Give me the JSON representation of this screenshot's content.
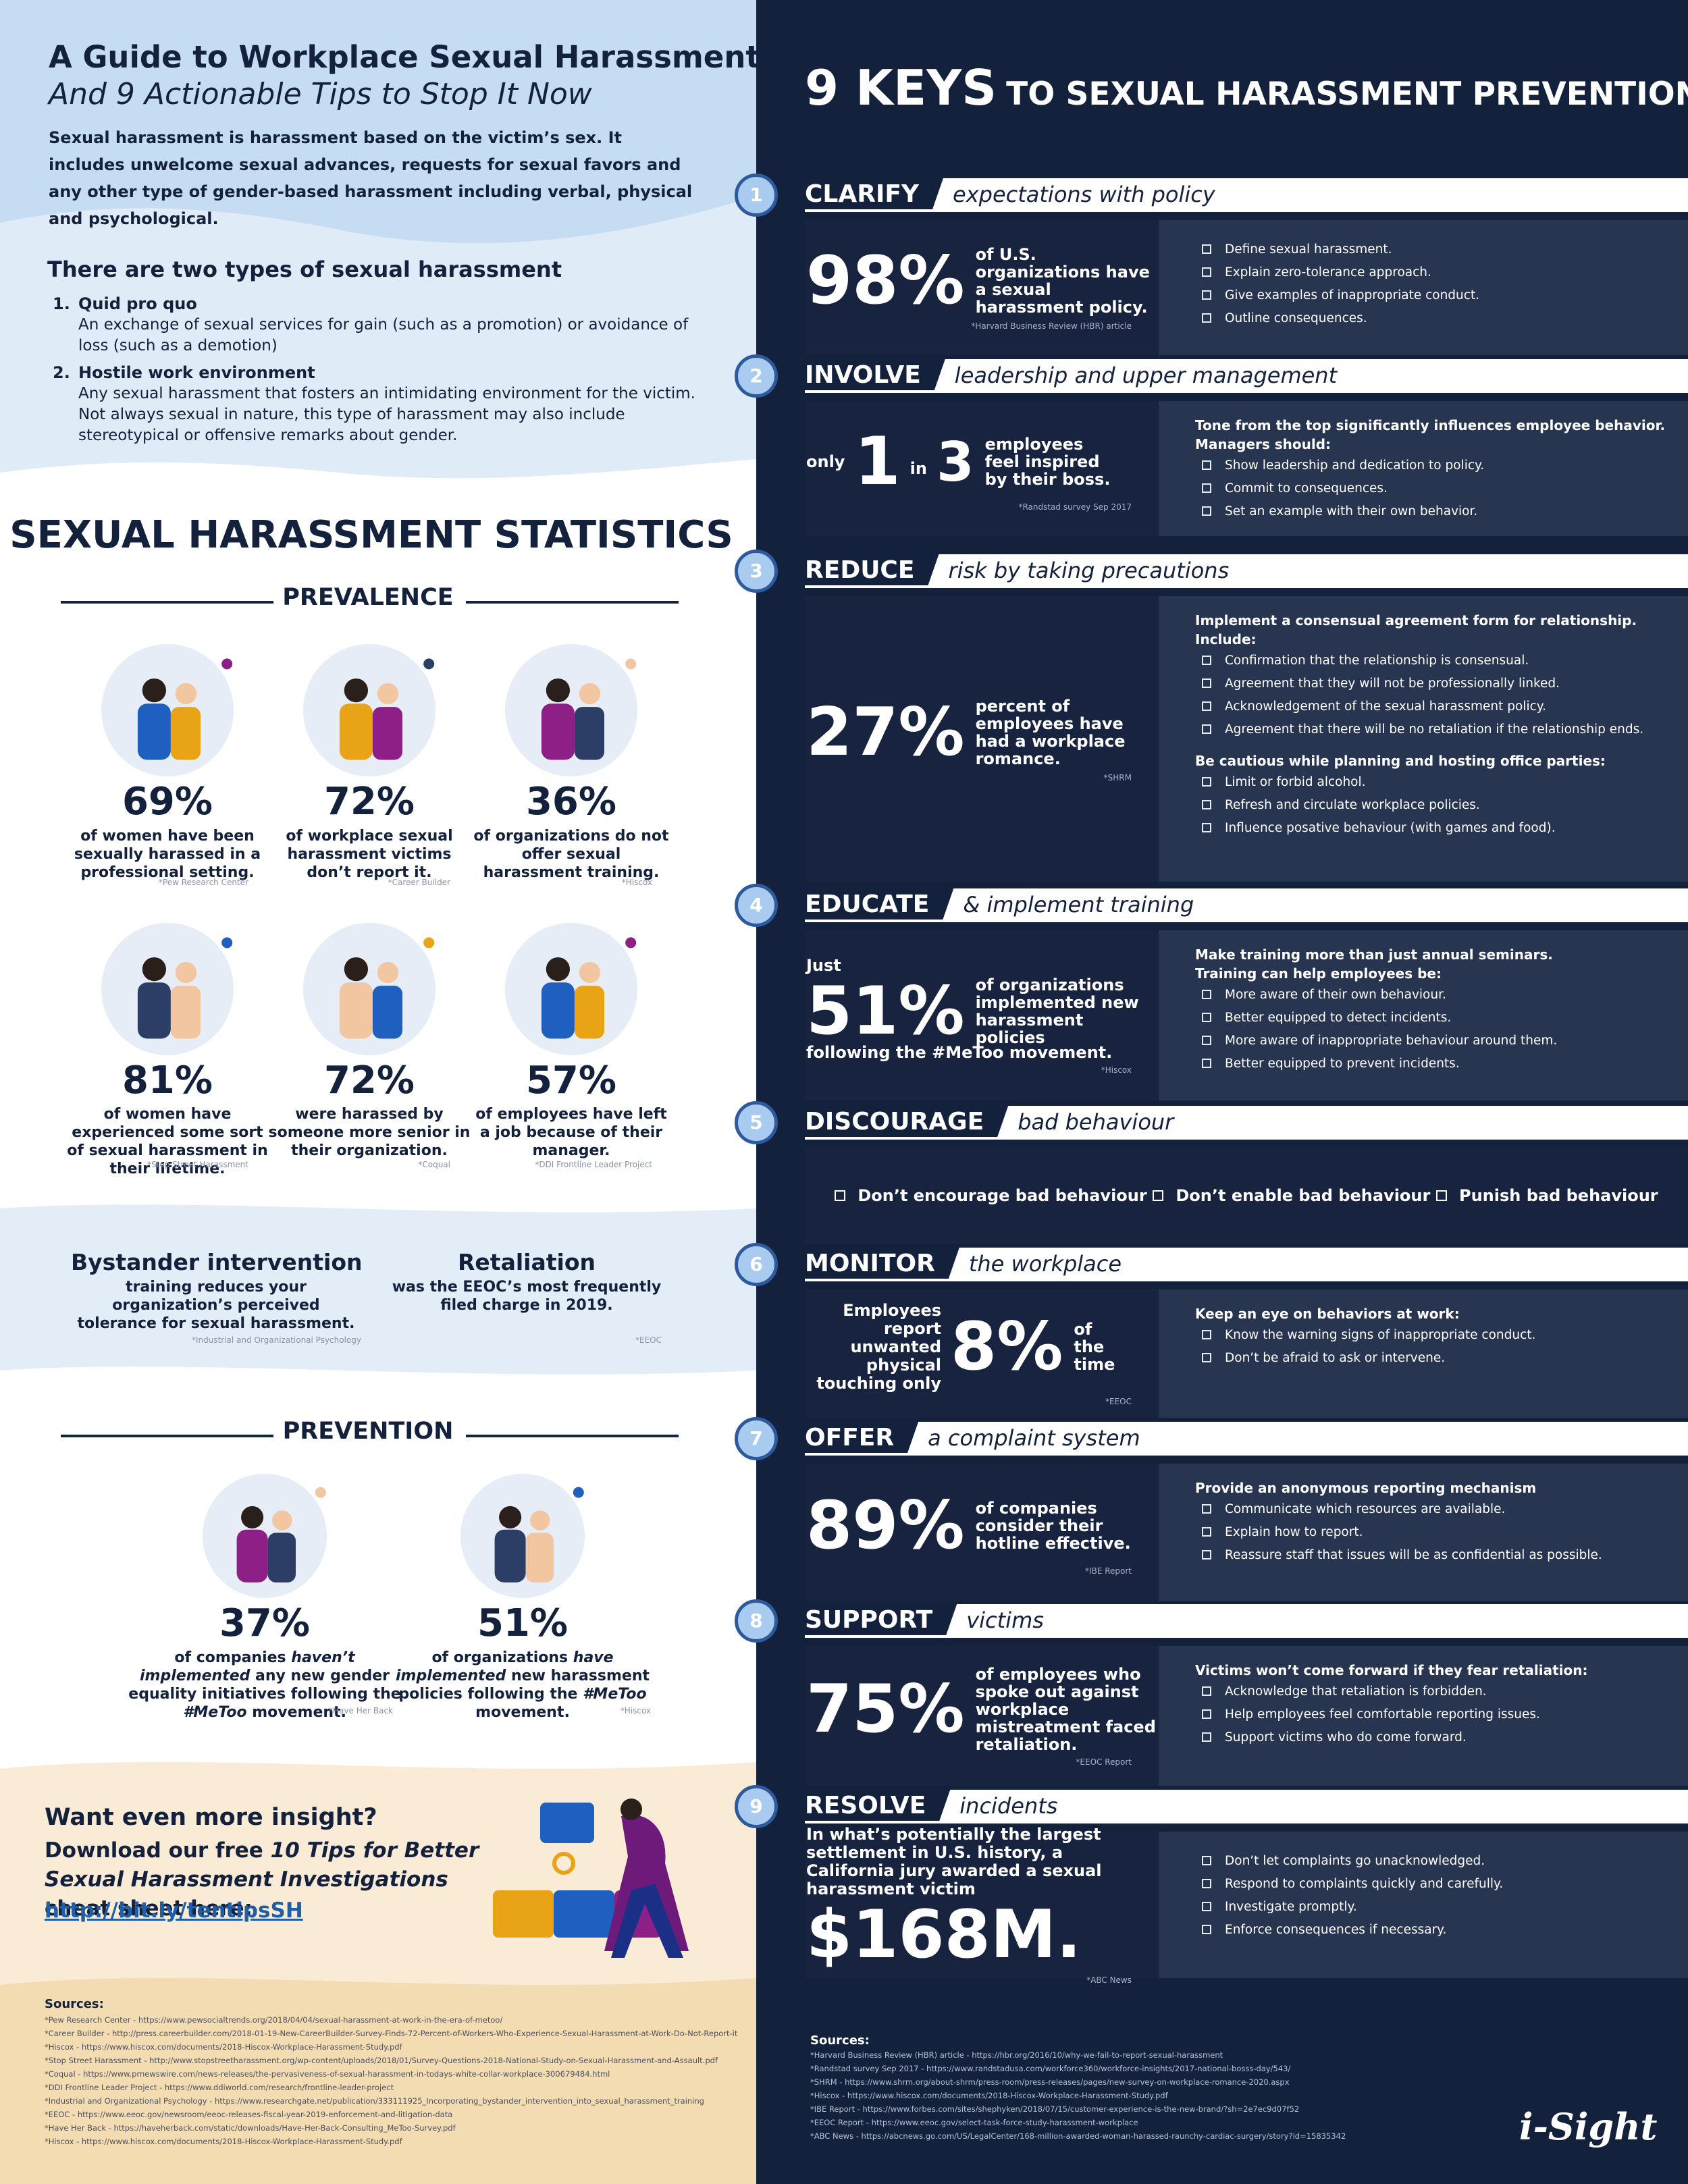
{
  "header": {
    "title": "A Guide to Workplace Sexual Harassment",
    "subtitle": "And 9 Actionable Tips to Stop It Now",
    "intro": "Sexual harassment is harassment based on the victim’s sex. It includes unwelcome sexual advances, requests for sexual favors and any other type of gender-based harassment including verbal, physical and psychological."
  },
  "types": {
    "heading": "There are two types of sexual harassment",
    "items": [
      {
        "number": "1.",
        "title": "Quid pro quo",
        "text": "An exchange of sexual services for gain (such as a promotion) or avoidance of loss (such as a demotion)"
      },
      {
        "number": "2.",
        "title": "Hostile work environment",
        "text": "Any sexual harassment that fosters an intimidating environment for the victim. Not always sexual in nature,  this type of harassment may  also include stereotypical or offensive remarks about gender."
      }
    ]
  },
  "statistics": {
    "title": "SEXUAL HARASSMENT STATISTICS",
    "prevalence": {
      "heading": "PREVALENCE",
      "stats": [
        {
          "value": "69%",
          "text": "of women have been sexually harassed in a professional setting.",
          "source": "*Pew Research Center"
        },
        {
          "value": "72%",
          "text": "of workplace sexual harassment victims don’t report it.",
          "source": "*Career Builder"
        },
        {
          "value": "36%",
          "text": "of organizations do not offer sexual harassment training.",
          "source": "*Hiscox"
        },
        {
          "value": "81%",
          "text": "of women have experienced some sort of sexual harassment in their lifetime.",
          "source": "*Stop Street Harassment"
        },
        {
          "value": "72%",
          "text": "were harassed by someone more senior in their organization.",
          "source": "*Coqual"
        },
        {
          "value": "57%",
          "text": "of employees have left a job because of their manager.",
          "source": "*DDI Frontline Leader Project"
        }
      ]
    },
    "callouts": [
      {
        "title": "Bystander intervention",
        "text": "training reduces your organization’s perceived tolerance for sexual harassment.",
        "source": "*Industrial and Organizational Psychology"
      },
      {
        "title": "Retaliation",
        "text": "was the EEOC’s most frequently filed charge in 2019.",
        "source": "*EEOC"
      }
    ],
    "prevention": {
      "heading": "PREVENTION",
      "stats": [
        {
          "value": "37%",
          "text_parts": [
            "of companies ",
            "haven’t implemented",
            " any new gender equality initiatives following the ",
            "#MeToo",
            " movement."
          ],
          "source": "*Have Her Back"
        },
        {
          "value": "51%",
          "text_parts": [
            "of organizations ",
            "have implemented",
            " new harassment policies following the ",
            "#MeToo",
            " movement."
          ],
          "source": "*Hiscox"
        }
      ]
    }
  },
  "cta": {
    "title": "Want even more insight?",
    "text_parts": [
      "Download our free ",
      "10 Tips for Better Sexual Harassment Investigations",
      " cheat sheet here:"
    ],
    "link": "http://bit.ly/tentipsSH"
  },
  "sources_left": {
    "heading": "Sources:",
    "items": [
      "*Pew Research Center - https://www.pewsocialtrends.org/2018/04/04/sexual-harassment-at-work-in-the-era-of-metoo/",
      "*Career Builder - http://press.careerbuilder.com/2018-01-19-New-CareerBuilder-Survey-Finds-72-Percent-of-Workers-Who-Experience-Sexual-Harassment-at-Work-Do-Not-Report-it",
      "*Hiscox - https://www.hiscox.com/documents/2018-Hiscox-Workplace-Harassment-Study.pdf",
      "*Stop Street Harassment - http://www.stopstreetharassment.org/wp-content/uploads/2018/01/Survey-Questions-2018-National-Study-on-Sexual-Harassment-and-Assault.pdf",
      "*Coqual - https://www.prnewswire.com/news-releases/the-pervasiveness-of-sexual-harassment-in-todays-white-collar-workplace-300679484.html",
      "*DDI Frontline Leader Project - https://www.ddiworld.com/research/frontline-leader-project",
      "*Industrial and Organizational Psychology - https://www.researchgate.net/publication/333111925_Incorporating_bystander_intervention_into_sexual_harassment_training",
      "*EEOC - https://www.eeoc.gov/newsroom/eeoc-releases-fiscal-year-2019-enforcement-and-litigation-data",
      "*Have Her Back - https://haveherback.com/static/downloads/Have-Her-Back-Consulting_MeToo-Survey.pdf",
      "*Hiscox - https://www.hiscox.com/documents/2018-Hiscox-Workplace-Harassment-Study.pdf"
    ]
  },
  "keys": {
    "title_big": "9 KEYS",
    "title_rest": "TO SEXUAL HARASSMENT PREVENTION",
    "items": [
      {
        "number": "1",
        "keyword": "CLARIFY",
        "phrase": "expectations with policy",
        "stat": {
          "figure": "98%",
          "text": "of U.S. organizations have a sexual harassment policy.",
          "source": "*Harvard Business Review (HBR) article"
        },
        "groups": [
          {
            "items": [
              "Define sexual harassment.",
              "Explain zero-tolerance approach.",
              "Give examples of inappropriate conduct.",
              "Outline consequences."
            ]
          }
        ]
      },
      {
        "number": "2",
        "keyword": "INVOLVE",
        "phrase": "leadership and upper management",
        "stat": {
          "lead": "only",
          "figure": "1",
          "connector": "in",
          "figure2": "3",
          "text": "employees feel inspired by their boss.",
          "source": "*Randstad survey Sep 2017"
        },
        "groups": [
          {
            "heading": [
              "Tone from the  top significantly influences employee behavior.",
              "Managers should:"
            ],
            "items": [
              "Show leadership and dedication to policy.",
              "Commit to consequences.",
              "Set an example with their own behavior."
            ]
          }
        ]
      },
      {
        "number": "3",
        "keyword": "REDUCE",
        "phrase": "risk by taking precautions",
        "stat": {
          "figure": "27%",
          "text": "percent of employees have had a workplace romance.",
          "source": "*SHRM"
        },
        "groups": [
          {
            "heading": [
              "Implement a consensual agreement form for relationship.",
              "Include:"
            ],
            "items": [
              "Confirmation that the relationship is consensual.",
              "Agreement that they will not be professionally linked.",
              "Acknowledgement of the sexual harassment policy.",
              "Agreement that there will be no retaliation if the relationship ends."
            ]
          },
          {
            "heading": [
              "Be cautious while planning and hosting office parties:"
            ],
            "items": [
              "Limit or forbid alcohol.",
              "Refresh and circulate workplace policies.",
              "Influence posative behaviour (with games and food)."
            ]
          }
        ]
      },
      {
        "number": "4",
        "keyword": "EDUCATE",
        "phrase": "& implement training",
        "stat": {
          "lead": "Just",
          "figure": "51%",
          "text": "of organizations implemented new harassment policies",
          "tail": "following the #MeToo movement.",
          "source": "*Hiscox"
        },
        "groups": [
          {
            "heading": [
              "Make training more than just annual seminars.",
              "Training can help employees be:"
            ],
            "items": [
              "More aware of their own behaviour.",
              "Better equipped to detect incidents.",
              "More aware of inappropriate behaviour around them.",
              "Better equipped to prevent incidents."
            ]
          }
        ]
      },
      {
        "number": "5",
        "keyword": "DISCOURAGE",
        "phrase": "bad behaviour",
        "inline_items": [
          "Don’t encourage bad behaviour",
          "Don’t enable bad behaviour",
          "Punish bad behaviour"
        ]
      },
      {
        "number": "6",
        "keyword": "MONITOR",
        "phrase": "the workplace",
        "stat": {
          "lead": "Employees report unwanted physical touching only",
          "figure": "8%",
          "text": "of the time",
          "source": "*EEOC"
        },
        "groups": [
          {
            "heading": [
              "Keep an  eye on behaviors at work:"
            ],
            "items": [
              "Know the  warning signs of inappropriate conduct.",
              "Don’t be afraid to ask or intervene."
            ]
          }
        ]
      },
      {
        "number": "7",
        "keyword": "OFFER",
        "phrase": "a complaint system",
        "stat": {
          "figure": "89%",
          "text": "of companies consider their hotline effective.",
          "source": "*IBE Report"
        },
        "groups": [
          {
            "heading": [
              "Provide an anonymous reporting mechanism"
            ],
            "items": [
              "Communicate which  resources are available.",
              "Explain how to report.",
              "Reassure staff that issues will be as confidential as possible."
            ]
          }
        ]
      },
      {
        "number": "8",
        "keyword": "SUPPORT",
        "phrase": "victims",
        "stat": {
          "figure": "75%",
          "text": "of employees who spoke  out  against workplace mistreatment faced retaliation.",
          "source": "*EEOC Report"
        },
        "groups": [
          {
            "heading": [
              "Victims won’t come forward if they fear retaliation:"
            ],
            "items": [
              "Acknowledge that retaliation is forbidden.",
              "Help employees feel comfortable reporting issues.",
              "Support victims who do come forward."
            ]
          }
        ]
      },
      {
        "number": "9",
        "keyword": "RESOLVE",
        "phrase": "incidents",
        "stat": {
          "lead": "In what’s potentially the largest settlement in U.S. history, a California jury awarded a sexual harassment victim",
          "figure": "$168M.",
          "source": "*ABC News"
        },
        "groups": [
          {
            "items": [
              "Don’t let complaints go unacknowledged.",
              "Respond to complaints quickly and carefully.",
              "Investigate promptly.",
              "Enforce consequences if necessary."
            ]
          }
        ]
      }
    ]
  },
  "sources_right": {
    "heading": "Sources:",
    "items": [
      "*Harvard Business Review (HBR) article - https://hbr.org/2016/10/why-we-fail-to-report-sexual-harassment",
      "*Randstad survey Sep 2017 - https://www.randstadusa.com/workforce360/workforce-insights/2017-national-bosss-day/543/",
      "*SHRM - https://www.shrm.org/about-shrm/press-room/press-releases/pages/new-survey-on-workplace-romance-2020.aspx",
      "*Hiscox - https://www.hiscox.com/documents/2018-Hiscox-Workplace-Harassment-Study.pdf",
      "*IBE Report - https://www.forbes.com/sites/shephyken/2018/07/15/customer-experience-is-the-new-brand/?sh=2e7ec9d07f52",
      "*EEOC Report - https://www.eeoc.gov/select-task-force-study-harassment-workplace",
      "*ABC News - https://abcnews.go.com/US/LegalCenter/168-million-awarded-woman-harassed-raunchy-cardiac-surgery/story?id=15835342"
    ]
  },
  "logo": "i-Sight"
}
